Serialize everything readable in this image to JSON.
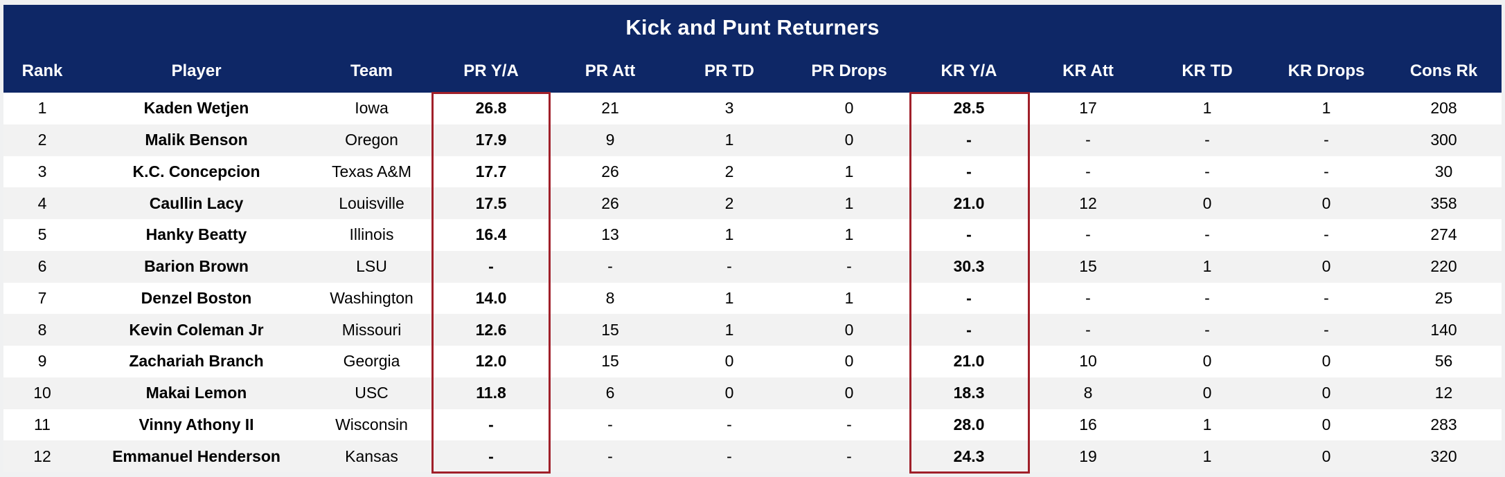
{
  "colors": {
    "header_navy": "#0e2766",
    "header_text": "#ffffff",
    "row_main": "#ffffff",
    "row_alt": "#f2f2f2",
    "page_background": "#f0f1f2",
    "highlight_red": "#a0202a",
    "body_text": "#000000"
  },
  "chart_data": {
    "type": "table",
    "title": "Kick and Punt Returners",
    "columns": [
      "Rank",
      "Player",
      "Team",
      "PR Y/A",
      "PR Att",
      "PR TD",
      "PR Drops",
      "KR Y/A",
      "KR Att",
      "KR TD",
      "KR Drops",
      "Cons Rk"
    ],
    "highlighted_columns": [
      "PR Y/A",
      "KR Y/A"
    ],
    "missing_value_symbol": "-",
    "rows": [
      [
        "1",
        "Kaden Wetjen",
        "Iowa",
        "26.8",
        "21",
        "3",
        "0",
        "28.5",
        "17",
        "1",
        "1",
        "208"
      ],
      [
        "2",
        "Malik Benson",
        "Oregon",
        "17.9",
        "9",
        "1",
        "0",
        "-",
        "-",
        "-",
        "-",
        "300"
      ],
      [
        "3",
        "K.C. Concepcion",
        "Texas A&M",
        "17.7",
        "26",
        "2",
        "1",
        "-",
        "-",
        "-",
        "-",
        "30"
      ],
      [
        "4",
        "Caullin Lacy",
        "Louisville",
        "17.5",
        "26",
        "2",
        "1",
        "21.0",
        "12",
        "0",
        "0",
        "358"
      ],
      [
        "5",
        "Hanky Beatty",
        "Illinois",
        "16.4",
        "13",
        "1",
        "1",
        "-",
        "-",
        "-",
        "-",
        "274"
      ],
      [
        "6",
        "Barion Brown",
        "LSU",
        "-",
        "-",
        "-",
        "-",
        "30.3",
        "15",
        "1",
        "0",
        "220"
      ],
      [
        "7",
        "Denzel Boston",
        "Washington",
        "14.0",
        "8",
        "1",
        "1",
        "-",
        "-",
        "-",
        "-",
        "25"
      ],
      [
        "8",
        "Kevin Coleman Jr",
        "Missouri",
        "12.6",
        "15",
        "1",
        "0",
        "-",
        "-",
        "-",
        "-",
        "140"
      ],
      [
        "9",
        "Zachariah Branch",
        "Georgia",
        "12.0",
        "15",
        "0",
        "0",
        "21.0",
        "10",
        "0",
        "0",
        "56"
      ],
      [
        "10",
        "Makai Lemon",
        "USC",
        "11.8",
        "6",
        "0",
        "0",
        "18.3",
        "8",
        "0",
        "0",
        "12"
      ],
      [
        "11",
        "Vinny Athony II",
        "Wisconsin",
        "-",
        "-",
        "-",
        "-",
        "28.0",
        "16",
        "1",
        "0",
        "283"
      ],
      [
        "12",
        "Emmanuel Henderson",
        "Kansas",
        "-",
        "-",
        "-",
        "-",
        "24.3",
        "19",
        "1",
        "0",
        "320"
      ]
    ]
  }
}
